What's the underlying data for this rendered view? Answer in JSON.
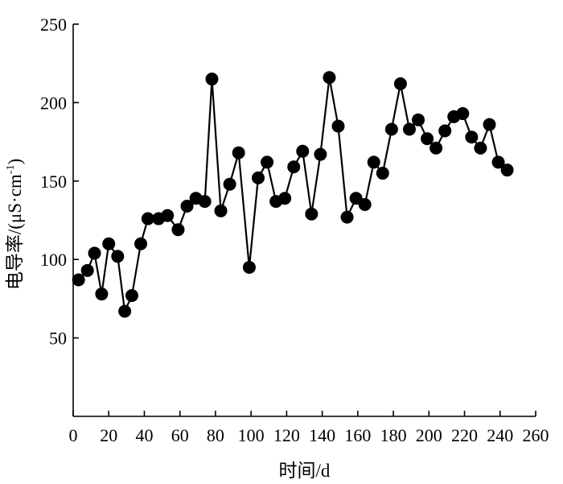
{
  "chart_data": {
    "type": "line",
    "xlabel": "时间/d",
    "ylabel_main": "电导率/(μS·cm",
    "ylabel_sup": "-1",
    "ylabel_end": ")",
    "xlim": [
      0,
      260
    ],
    "ylim": [
      0,
      250
    ],
    "xticks": [
      0,
      20,
      40,
      60,
      80,
      100,
      120,
      140,
      160,
      180,
      200,
      220,
      240,
      260
    ],
    "yticks": [
      50,
      100,
      150,
      200,
      250
    ],
    "grid": false,
    "series": [
      {
        "x": [
          3,
          8,
          12,
          16,
          20,
          25,
          29,
          33,
          38,
          42,
          48,
          53,
          59,
          64,
          69,
          74,
          78,
          83,
          88,
          93,
          99,
          104,
          109,
          114,
          119,
          124,
          129,
          134,
          139,
          144,
          149,
          154,
          159,
          164,
          169,
          174,
          179,
          184,
          189,
          194,
          199,
          204,
          209,
          214,
          219,
          224,
          229,
          234,
          239,
          244
        ],
        "values": [
          87,
          93,
          104,
          78,
          110,
          102,
          67,
          77,
          110,
          126,
          126,
          128,
          119,
          134,
          139,
          137,
          215,
          131,
          148,
          168,
          95,
          152,
          162,
          137,
          139,
          159,
          169,
          129,
          167,
          216,
          185,
          127,
          139,
          135,
          162,
          155,
          183,
          212,
          183,
          189,
          177,
          171,
          182,
          191,
          193,
          178,
          171,
          186,
          162,
          157
        ]
      }
    ]
  }
}
